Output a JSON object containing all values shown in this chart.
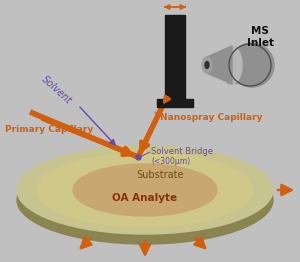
{
  "background_color": "#c0c0c0",
  "substrate_outer_color": "#c8c490",
  "substrate_rim_color": "#b8b478",
  "substrate_mid_color": "#d0c888",
  "analyte_color": "#c8a870",
  "orange_color": "#d06010",
  "purple_color": "#6848b0",
  "black_color": "#1a1a1a",
  "gray_dark": "#707070",
  "gray_mid": "#909090",
  "gray_light": "#b8b8b8",
  "text_primary_capillary": "Primary Capillary",
  "text_nanospray": "Nanospray Capillary",
  "text_solvent_bridge": "Solvent Bridge",
  "text_solvent_bridge_sub": "(<300μm)",
  "text_oa_analyte": "OA Analyte",
  "text_substrate": "Substrate",
  "text_ms_inlet": "MS\nInlet",
  "text_solvent": "Solvent"
}
